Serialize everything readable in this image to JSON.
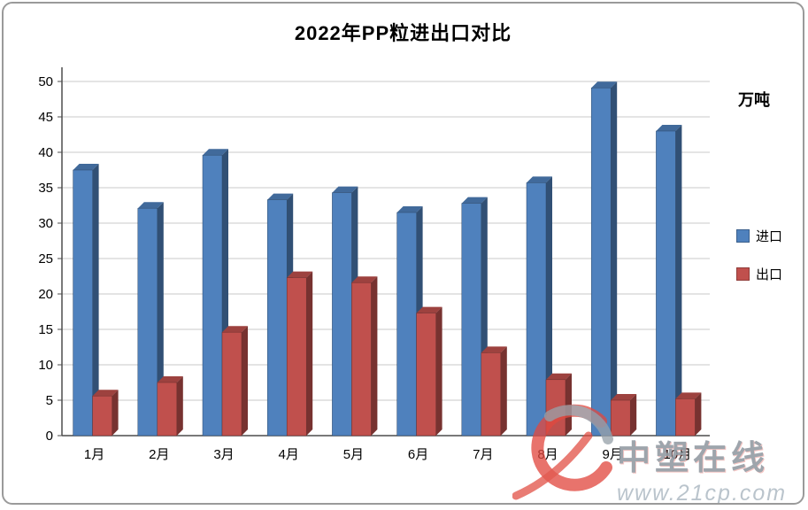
{
  "chart_data": {
    "type": "bar",
    "title": "2022年PP粒进出口对比",
    "unit_label": "万吨",
    "categories": [
      "1月",
      "2月",
      "3月",
      "4月",
      "5月",
      "6月",
      "7月",
      "8月",
      "9月",
      "10月"
    ],
    "series": [
      {
        "name": "进口",
        "color": "#4F81BD",
        "values": [
          37.5,
          32.1,
          39.6,
          33.3,
          34.3,
          31.5,
          32.8,
          35.7,
          49.1,
          43.0
        ]
      },
      {
        "name": "出口",
        "color": "#C0504D",
        "values": [
          5.6,
          7.5,
          14.6,
          22.3,
          21.6,
          17.3,
          11.7,
          7.9,
          5.0,
          5.2
        ]
      }
    ],
    "ylim": [
      0,
      50
    ],
    "ytick_step": 5,
    "grid": true,
    "legend_position": "right",
    "effect": "3d-column"
  },
  "watermark": {
    "brand": "中塑在线",
    "url": "www.21cp.com"
  }
}
